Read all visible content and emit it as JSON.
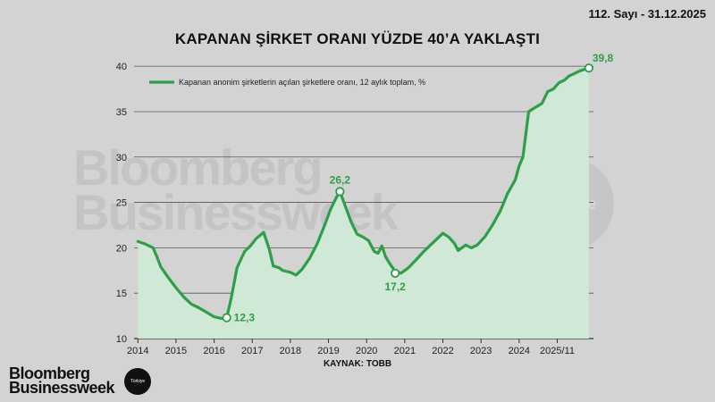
{
  "header": {
    "issue": "112. Sayı - 31.12.2025",
    "title": "KAPANAN ŞİRKET ORANI YÜZDE 40’A YAKLAŞTI"
  },
  "watermark": {
    "line1": "Bloomberg",
    "line2": "Businessweek",
    "badge": "Türkiye"
  },
  "footer": {
    "source": "KAYNAK: TOBB",
    "logo_line1": "Bloomberg",
    "logo_line2": "Businessweek",
    "logo_badge": "Türkiye"
  },
  "colors": {
    "line": "#2e9e4a",
    "fill": "#cfe9d6",
    "background": "#d3d3d3"
  },
  "chart_data": {
    "type": "area",
    "title": "KAPANAN ŞİRKET ORANI YÜZDE 40’A YAKLAŞTI",
    "legend": "Kapanan anonim şirketlerin açılan şirketlere oranı, 12 aylık toplam, %",
    "legend_position": "top-left",
    "grid": true,
    "x_tick_labels": [
      "2014",
      "2015",
      "2016",
      "2017",
      "2018",
      "2019",
      "2020",
      "2021",
      "2022",
      "2023",
      "2024",
      "2025/11"
    ],
    "x_ticks_years": [
      2014,
      2015,
      2016,
      2017,
      2018,
      2019,
      2020,
      2021,
      2022,
      2023,
      2024,
      2025
    ],
    "xlim": [
      2013.9,
      2025.95
    ],
    "y_ticks": [
      10,
      15,
      20,
      25,
      30,
      35,
      40
    ],
    "ylim": [
      10,
      41
    ],
    "series": [
      {
        "x": [
          2014.0,
          2014.2,
          2014.4,
          2014.5,
          2014.6,
          2014.8,
          2015.0,
          2015.2,
          2015.4,
          2015.6,
          2015.8,
          2016.0,
          2016.2,
          2016.33,
          2016.45,
          2016.6,
          2016.8,
          2016.95,
          2017.1,
          2017.3,
          2017.45,
          2017.55,
          2017.7,
          2017.8,
          2018.0,
          2018.15,
          2018.3,
          2018.5,
          2018.7,
          2018.9,
          2019.05,
          2019.2,
          2019.3,
          2019.45,
          2019.6,
          2019.75,
          2019.9,
          2020.05,
          2020.2,
          2020.3,
          2020.4,
          2020.5,
          2020.6,
          2020.75,
          2020.9,
          2021.1,
          2021.3,
          2021.5,
          2021.7,
          2021.9,
          2022.0,
          2022.15,
          2022.3,
          2022.4,
          2022.5,
          2022.6,
          2022.75,
          2022.9,
          2023.1,
          2023.3,
          2023.5,
          2023.7,
          2023.9,
          2024.0,
          2024.1,
          2024.25,
          2024.4,
          2024.6,
          2024.75,
          2024.9,
          2025.05,
          2025.2,
          2025.3,
          2025.45,
          2025.6,
          2025.83
        ],
        "values": [
          20.7,
          20.4,
          20.0,
          19.0,
          17.9,
          16.7,
          15.6,
          14.6,
          13.8,
          13.4,
          12.9,
          12.4,
          12.2,
          12.3,
          14.5,
          17.8,
          19.6,
          20.2,
          21.0,
          21.7,
          19.8,
          18.0,
          17.8,
          17.5,
          17.3,
          17.0,
          17.6,
          18.8,
          20.4,
          22.5,
          24.2,
          25.5,
          26.2,
          24.5,
          22.8,
          21.5,
          21.2,
          20.8,
          19.6,
          19.4,
          20.2,
          19.0,
          18.3,
          17.4,
          17.2,
          17.8,
          18.7,
          19.6,
          20.4,
          21.2,
          21.6,
          21.2,
          20.5,
          19.7,
          20.0,
          20.3,
          20.0,
          20.3,
          21.2,
          22.5,
          24.0,
          26.0,
          27.5,
          29.0,
          30.0,
          35.0,
          35.4,
          35.9,
          37.2,
          37.5,
          38.2,
          38.5,
          38.9,
          39.2,
          39.5,
          39.8
        ]
      }
    ],
    "callouts": [
      {
        "x": 2016.33,
        "y": 12.3,
        "label": "12,3",
        "anchor": "right"
      },
      {
        "x": 2019.3,
        "y": 26.2,
        "label": "26,2",
        "anchor": "above"
      },
      {
        "x": 2020.75,
        "y": 17.2,
        "label": "17,2",
        "anchor": "below"
      },
      {
        "x": 2025.83,
        "y": 39.8,
        "label": "39,8",
        "anchor": "right-above"
      }
    ]
  }
}
